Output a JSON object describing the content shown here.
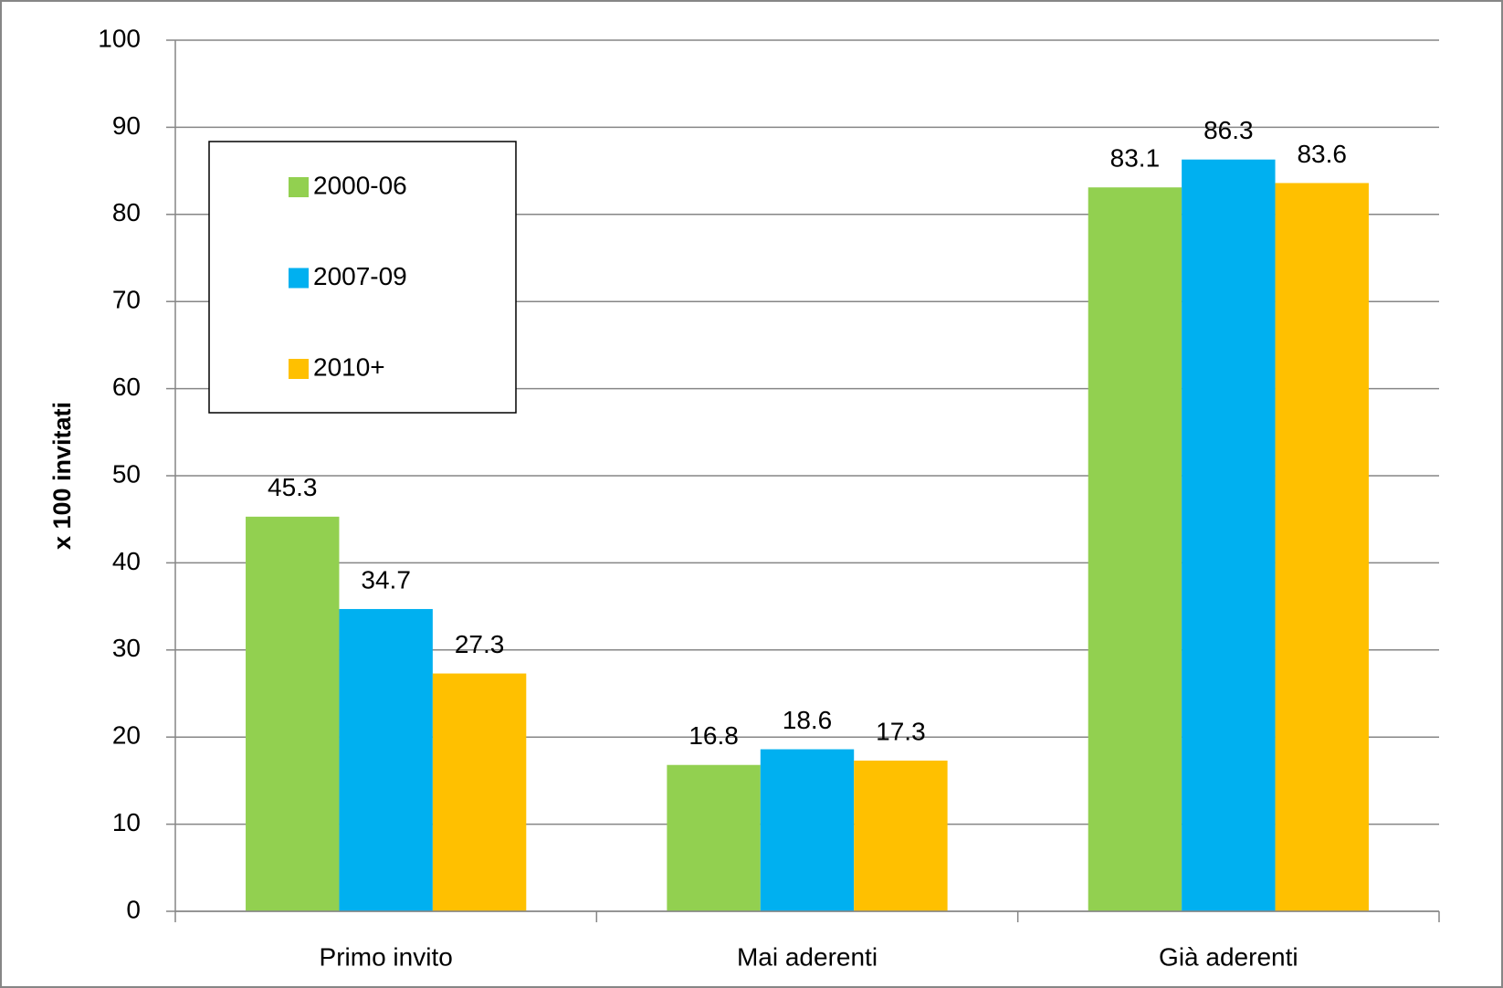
{
  "chart_data": {
    "type": "bar",
    "y_label": "x 100 invitati",
    "categories": [
      "Primo invito",
      "Mai aderenti",
      "Già aderenti"
    ],
    "series": [
      {
        "name": "2000-06",
        "color": "#92d050",
        "values": [
          45.3,
          16.8,
          83.1
        ]
      },
      {
        "name": "2007-09",
        "color": "#00b0f0",
        "values": [
          34.7,
          18.6,
          86.3
        ]
      },
      {
        "name": "2010+",
        "color": "#ffc000",
        "values": [
          27.3,
          17.3,
          83.6
        ]
      }
    ],
    "ylim": [
      0,
      100
    ],
    "yticks": [
      0,
      10,
      20,
      30,
      40,
      50,
      60,
      70,
      80,
      90,
      100
    ],
    "grid": true,
    "legend": "upper left"
  }
}
